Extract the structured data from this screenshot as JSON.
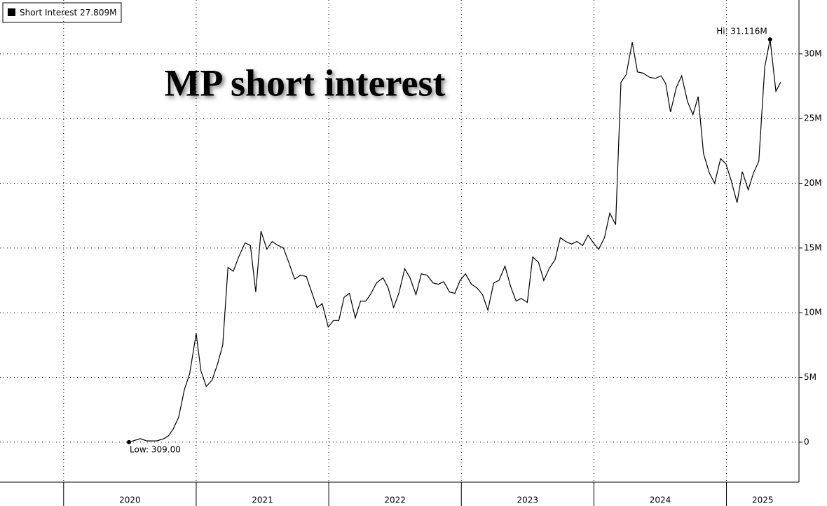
{
  "chart_data": {
    "type": "line",
    "title": "MP short interest",
    "legend_label": "27.809M",
    "series": [
      {
        "name": "Short Interest",
        "color": "#000000",
        "x": [
          2020.493,
          2020.578,
          2020.627,
          2020.702,
          2020.756,
          2020.791,
          2020.827,
          2020.867,
          2020.911,
          2020.951,
          2021.0,
          2021.036,
          2021.076,
          2021.12,
          2021.16,
          2021.2,
          2021.24,
          2021.28,
          2021.32,
          2021.369,
          2021.409,
          2021.449,
          2021.489,
          2021.533,
          2021.573,
          2021.618,
          2021.658,
          2021.698,
          2021.742,
          2021.787,
          2021.831,
          2021.871,
          2021.911,
          2021.951,
          2021.996,
          2022.036,
          2022.076,
          2022.116,
          2022.156,
          2022.2,
          2022.24,
          2022.28,
          2022.32,
          2022.36,
          2022.409,
          2022.449,
          2022.489,
          2022.529,
          2022.573,
          2022.613,
          2022.658,
          2022.698,
          2022.742,
          2022.787,
          2022.827,
          2022.867,
          2022.911,
          2022.951,
          2022.991,
          2023.031,
          2023.076,
          2023.12,
          2023.16,
          2023.2,
          2023.244,
          2023.284,
          2023.329,
          2023.373,
          2023.413,
          2023.453,
          2023.498,
          2023.538,
          2023.582,
          2023.622,
          2023.662,
          2023.707,
          2023.747,
          2023.787,
          2023.831,
          2023.871,
          2023.916,
          2023.956,
          2023.996,
          2024.036,
          2024.08,
          2024.12,
          2024.164,
          2024.204,
          2024.244,
          2024.289,
          2024.329,
          2024.373,
          2024.418,
          2024.462,
          2024.507,
          2024.542,
          2024.578,
          2024.622,
          2024.662,
          2024.707,
          2024.747,
          2024.787,
          2024.827,
          2024.871,
          2024.911,
          2024.956,
          2024.996,
          2025.036,
          2025.08,
          2025.12,
          2025.164,
          2025.204,
          2025.244,
          2025.289,
          2025.329,
          2025.373,
          2025.409
        ],
        "values": [
          0.000309,
          0.27,
          0.1,
          0.1,
          0.27,
          0.49,
          1.03,
          1.9,
          4.06,
          5.3,
          8.4,
          5.5,
          4.3,
          4.8,
          6.0,
          7.5,
          13.5,
          13.2,
          14.3,
          15.4,
          15.2,
          11.6,
          16.3,
          14.9,
          15.5,
          15.2,
          15.0,
          13.9,
          12.6,
          12.9,
          12.8,
          11.6,
          10.4,
          10.7,
          8.9,
          9.4,
          9.4,
          11.2,
          11.5,
          9.6,
          10.9,
          10.9,
          11.5,
          12.3,
          12.7,
          11.9,
          10.4,
          11.5,
          13.4,
          12.7,
          11.4,
          13.0,
          12.9,
          12.3,
          12.2,
          12.4,
          11.6,
          11.5,
          12.5,
          13.0,
          12.2,
          11.9,
          11.4,
          10.2,
          12.3,
          12.5,
          13.6,
          12.0,
          10.9,
          11.1,
          10.8,
          14.3,
          13.9,
          12.5,
          13.4,
          14.1,
          15.8,
          15.5,
          15.3,
          15.5,
          15.2,
          16.0,
          15.4,
          14.9,
          15.8,
          17.7,
          16.8,
          27.8,
          28.4,
          30.9,
          28.6,
          28.5,
          28.2,
          28.1,
          28.3,
          27.7,
          25.5,
          27.4,
          28.3,
          26.3,
          25.3,
          26.7,
          22.3,
          20.8,
          20.0,
          21.9,
          21.5,
          20.2,
          18.5,
          20.9,
          19.5,
          20.8,
          21.7,
          29.0,
          31.116,
          27.1,
          27.809
        ]
      }
    ],
    "annotations": [
      {
        "text": "Hi: 31.116M",
        "x": 2025.329,
        "y": 31.116
      },
      {
        "text": "Low: 309.00",
        "x": 2020.493,
        "y": 0.000309
      }
    ],
    "xlim": [
      2019.52,
      2025.547
    ],
    "xticks": [
      {
        "value": 2020,
        "label": "2020"
      },
      {
        "value": 2021,
        "label": "2021"
      },
      {
        "value": 2022,
        "label": "2022"
      },
      {
        "value": 2023,
        "label": "2023"
      },
      {
        "value": 2024,
        "label": "2024"
      },
      {
        "value": 2025,
        "label": "2025"
      }
    ],
    "ylim": [
      -3.09,
      34.16
    ],
    "yticks": [
      {
        "value": 0,
        "label": "0"
      },
      {
        "value": 5,
        "label": "5M"
      },
      {
        "value": 10,
        "label": "10M"
      },
      {
        "value": 15,
        "label": "15M"
      },
      {
        "value": 20,
        "label": "20M"
      },
      {
        "value": 25,
        "label": "25M"
      },
      {
        "value": 30,
        "label": "30M"
      }
    ],
    "grid": true
  }
}
